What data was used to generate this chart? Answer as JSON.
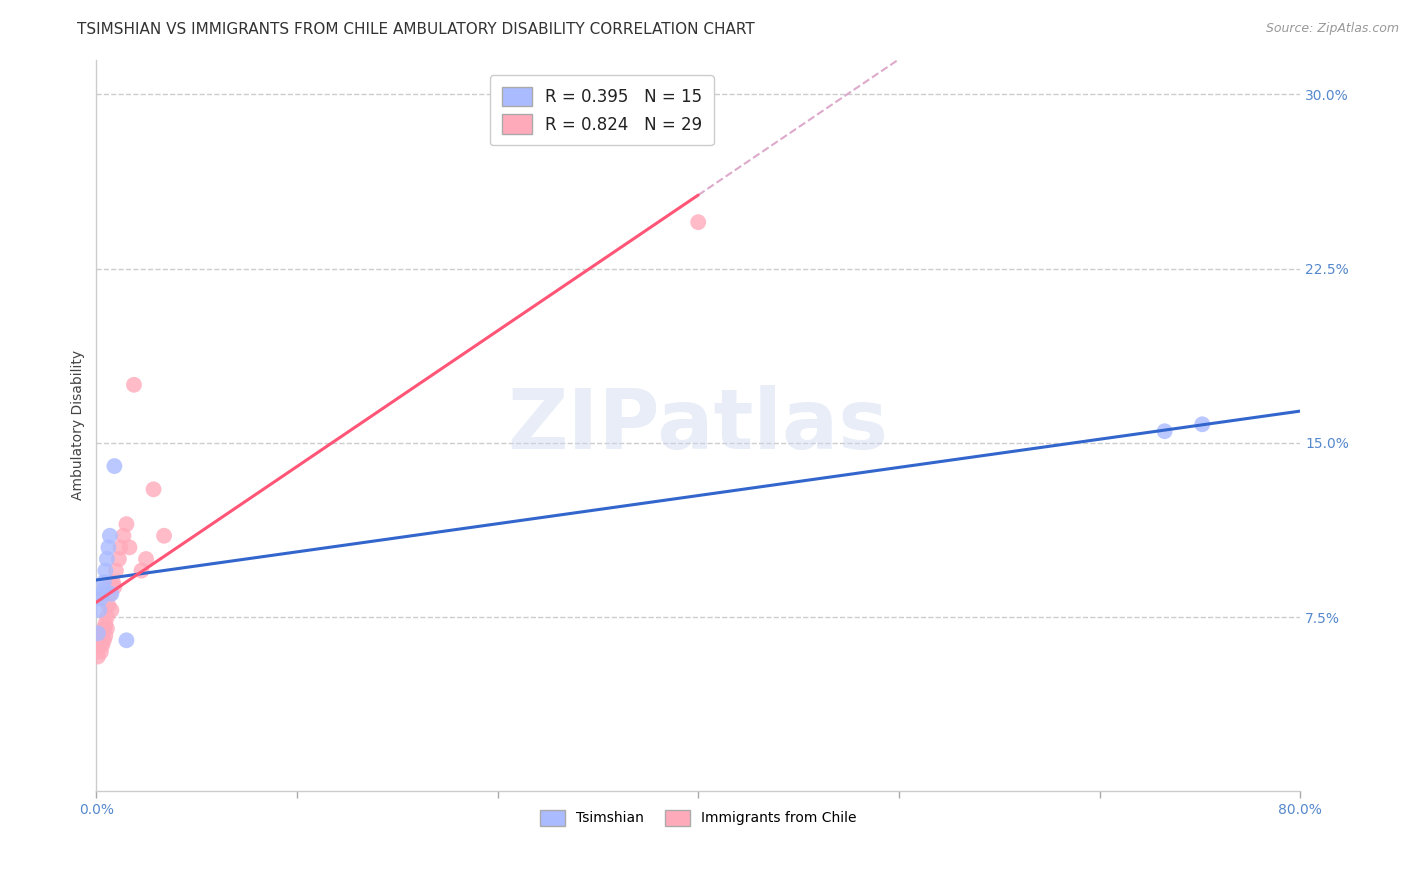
{
  "title": "TSIMSHIAN VS IMMIGRANTS FROM CHILE AMBULATORY DISABILITY CORRELATION CHART",
  "source": "Source: ZipAtlas.com",
  "ylabel": "Ambulatory Disability",
  "xlim": [
    0.0,
    0.8
  ],
  "ylim": [
    0.0,
    0.315
  ],
  "xticks": [
    0.0,
    0.1333,
    0.2667,
    0.4,
    0.5333,
    0.6667,
    0.8
  ],
  "xtick_labels": [
    "0.0%",
    "",
    "",
    "",
    "",
    "",
    "80.0%"
  ],
  "yticks_right": [
    0.075,
    0.15,
    0.225,
    0.3
  ],
  "ytick_labels_right": [
    "7.5%",
    "15.0%",
    "22.5%",
    "30.0%"
  ],
  "watermark": "ZIPatlas",
  "legend_R1": "R = 0.395",
  "legend_N1": "N = 15",
  "legend_R2": "R = 0.824",
  "legend_N2": "N = 29",
  "blue_scatter_color": "#aabbff",
  "pink_scatter_color": "#ffaabb",
  "blue_line_color": "#3366cc",
  "pink_line_color": "#ff5577",
  "dashed_line_color": "#ddaacc",
  "tsimshian_x": [
    0.001,
    0.002,
    0.003,
    0.004,
    0.005,
    0.005,
    0.006,
    0.007,
    0.008,
    0.009,
    0.01,
    0.012,
    0.02,
    0.71,
    0.735
  ],
  "tsimshian_y": [
    0.068,
    0.078,
    0.083,
    0.085,
    0.09,
    0.087,
    0.095,
    0.1,
    0.105,
    0.11,
    0.085,
    0.14,
    0.065,
    0.155,
    0.158
  ],
  "chile_x": [
    0.001,
    0.002,
    0.003,
    0.003,
    0.004,
    0.004,
    0.005,
    0.005,
    0.006,
    0.006,
    0.007,
    0.007,
    0.008,
    0.009,
    0.01,
    0.011,
    0.012,
    0.013,
    0.015,
    0.016,
    0.018,
    0.02,
    0.022,
    0.025,
    0.03,
    0.033,
    0.038,
    0.045,
    0.4
  ],
  "chile_y": [
    0.058,
    0.062,
    0.06,
    0.065,
    0.063,
    0.068,
    0.065,
    0.07,
    0.067,
    0.072,
    0.07,
    0.075,
    0.08,
    0.085,
    0.078,
    0.09,
    0.088,
    0.095,
    0.1,
    0.105,
    0.11,
    0.115,
    0.105,
    0.175,
    0.095,
    0.1,
    0.13,
    0.11,
    0.245
  ],
  "grid_color": "#cccccc",
  "background_color": "#ffffff",
  "title_fontsize": 11,
  "axis_label_fontsize": 10,
  "tick_fontsize": 10,
  "legend_fontsize": 12,
  "source_fontsize": 9
}
